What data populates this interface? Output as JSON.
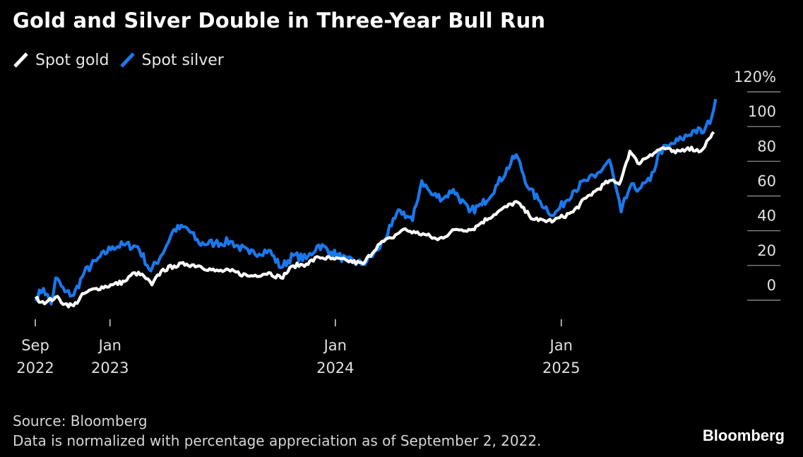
{
  "chart_data": {
    "type": "line",
    "title": "Gold and Silver Double in Three-Year Bull Run",
    "xlabel": "",
    "ylabel": "",
    "y_unit": "%",
    "ylim": [
      -10,
      120
    ],
    "xlim": [
      "2022-09-02",
      "2025-09-10"
    ],
    "yticks": [
      {
        "value": 120,
        "label": "120%"
      },
      {
        "value": 100,
        "label": "100"
      },
      {
        "value": 80,
        "label": "80"
      },
      {
        "value": 60,
        "label": "60"
      },
      {
        "value": 40,
        "label": "40"
      },
      {
        "value": 20,
        "label": "20"
      },
      {
        "value": 0,
        "label": "0"
      }
    ],
    "xticks": [
      {
        "date": "2022-09-02",
        "line1": "Sep",
        "line2": "2022"
      },
      {
        "date": "2023-01-01",
        "line1": "Jan",
        "line2": "2023"
      },
      {
        "date": "2024-01-01",
        "line1": "Jan",
        "line2": "2024"
      },
      {
        "date": "2025-01-01",
        "line1": "Jan",
        "line2": "2025"
      }
    ],
    "legend_position": "top-left",
    "grid": "short horizontal tick lines at right axis",
    "series": [
      {
        "name": "Spot gold",
        "color": "#ffffff",
        "points": [
          [
            "2022-09-02",
            0
          ],
          [
            "2022-09-20",
            -2
          ],
          [
            "2022-10-05",
            1
          ],
          [
            "2022-10-20",
            -3
          ],
          [
            "2022-11-03",
            -4
          ],
          [
            "2022-11-20",
            3
          ],
          [
            "2022-12-10",
            6
          ],
          [
            "2023-01-05",
            8
          ],
          [
            "2023-01-25",
            10
          ],
          [
            "2023-02-10",
            15
          ],
          [
            "2023-02-25",
            13
          ],
          [
            "2023-03-10",
            8
          ],
          [
            "2023-03-25",
            16
          ],
          [
            "2023-04-15",
            19
          ],
          [
            "2023-05-05",
            20
          ],
          [
            "2023-05-25",
            19
          ],
          [
            "2023-06-20",
            16
          ],
          [
            "2023-07-15",
            16
          ],
          [
            "2023-08-15",
            13
          ],
          [
            "2023-09-15",
            15
          ],
          [
            "2023-10-05",
            12
          ],
          [
            "2023-10-25",
            19
          ],
          [
            "2023-11-15",
            20
          ],
          [
            "2023-12-05",
            24
          ],
          [
            "2023-12-25",
            23
          ],
          [
            "2024-01-20",
            22
          ],
          [
            "2024-02-15",
            20
          ],
          [
            "2024-03-10",
            31
          ],
          [
            "2024-04-01",
            35
          ],
          [
            "2024-04-20",
            40
          ],
          [
            "2024-05-10",
            38
          ],
          [
            "2024-05-25",
            37
          ],
          [
            "2024-06-15",
            34
          ],
          [
            "2024-07-15",
            40
          ],
          [
            "2024-08-10",
            40
          ],
          [
            "2024-08-25",
            44
          ],
          [
            "2024-09-20",
            50
          ],
          [
            "2024-10-20",
            56
          ],
          [
            "2024-11-10",
            48
          ],
          [
            "2024-11-25",
            45
          ],
          [
            "2024-12-20",
            45
          ],
          [
            "2025-01-20",
            50
          ],
          [
            "2025-02-10",
            58
          ],
          [
            "2025-02-25",
            62
          ],
          [
            "2025-03-20",
            68
          ],
          [
            "2025-04-05",
            66
          ],
          [
            "2025-04-22",
            85
          ],
          [
            "2025-05-05",
            78
          ],
          [
            "2025-05-25",
            83
          ],
          [
            "2025-06-15",
            87
          ],
          [
            "2025-07-05",
            84
          ],
          [
            "2025-07-25",
            87
          ],
          [
            "2025-08-15",
            85
          ],
          [
            "2025-08-28",
            92
          ],
          [
            "2025-09-05",
            96
          ]
        ]
      },
      {
        "name": "Spot silver",
        "color": "#1a78ec",
        "points": [
          [
            "2022-09-02",
            0
          ],
          [
            "2022-09-15",
            6
          ],
          [
            "2022-09-28",
            -3
          ],
          [
            "2022-10-05",
            12
          ],
          [
            "2022-10-20",
            4
          ],
          [
            "2022-11-03",
            2
          ],
          [
            "2022-11-20",
            15
          ],
          [
            "2022-12-10",
            22
          ],
          [
            "2023-01-05",
            30
          ],
          [
            "2023-01-25",
            31
          ],
          [
            "2023-02-15",
            30
          ],
          [
            "2023-03-08",
            16
          ],
          [
            "2023-03-25",
            25
          ],
          [
            "2023-04-15",
            40
          ],
          [
            "2023-05-05",
            41
          ],
          [
            "2023-05-25",
            32
          ],
          [
            "2023-06-20",
            32
          ],
          [
            "2023-07-15",
            33
          ],
          [
            "2023-08-15",
            26
          ],
          [
            "2023-09-15",
            28
          ],
          [
            "2023-10-05",
            18
          ],
          [
            "2023-10-25",
            25
          ],
          [
            "2023-11-15",
            23
          ],
          [
            "2023-12-05",
            31
          ],
          [
            "2023-12-25",
            27
          ],
          [
            "2024-01-20",
            22
          ],
          [
            "2024-02-15",
            20
          ],
          [
            "2024-03-10",
            28
          ],
          [
            "2024-04-01",
            42
          ],
          [
            "2024-04-15",
            51
          ],
          [
            "2024-05-05",
            45
          ],
          [
            "2024-05-20",
            68
          ],
          [
            "2024-06-05",
            60
          ],
          [
            "2024-06-25",
            58
          ],
          [
            "2024-07-10",
            63
          ],
          [
            "2024-08-05",
            50
          ],
          [
            "2024-08-25",
            54
          ],
          [
            "2024-09-20",
            66
          ],
          [
            "2024-10-20",
            83
          ],
          [
            "2024-11-10",
            63
          ],
          [
            "2024-11-25",
            57
          ],
          [
            "2024-12-20",
            48
          ],
          [
            "2025-01-20",
            62
          ],
          [
            "2025-02-10",
            68
          ],
          [
            "2025-02-25",
            70
          ],
          [
            "2025-03-20",
            80
          ],
          [
            "2025-04-08",
            50
          ],
          [
            "2025-04-22",
            64
          ],
          [
            "2025-05-10",
            64
          ],
          [
            "2025-05-25",
            68
          ],
          [
            "2025-06-10",
            85
          ],
          [
            "2025-06-25",
            88
          ],
          [
            "2025-07-15",
            92
          ],
          [
            "2025-08-05",
            97
          ],
          [
            "2025-08-20",
            96
          ],
          [
            "2025-09-02",
            105
          ],
          [
            "2025-09-08",
            115
          ]
        ]
      }
    ],
    "footer": {
      "source": "Source: Bloomberg",
      "note": "Data is normalized with percentage appreciation as of September 2, 2022.",
      "brand": "Bloomberg"
    }
  }
}
